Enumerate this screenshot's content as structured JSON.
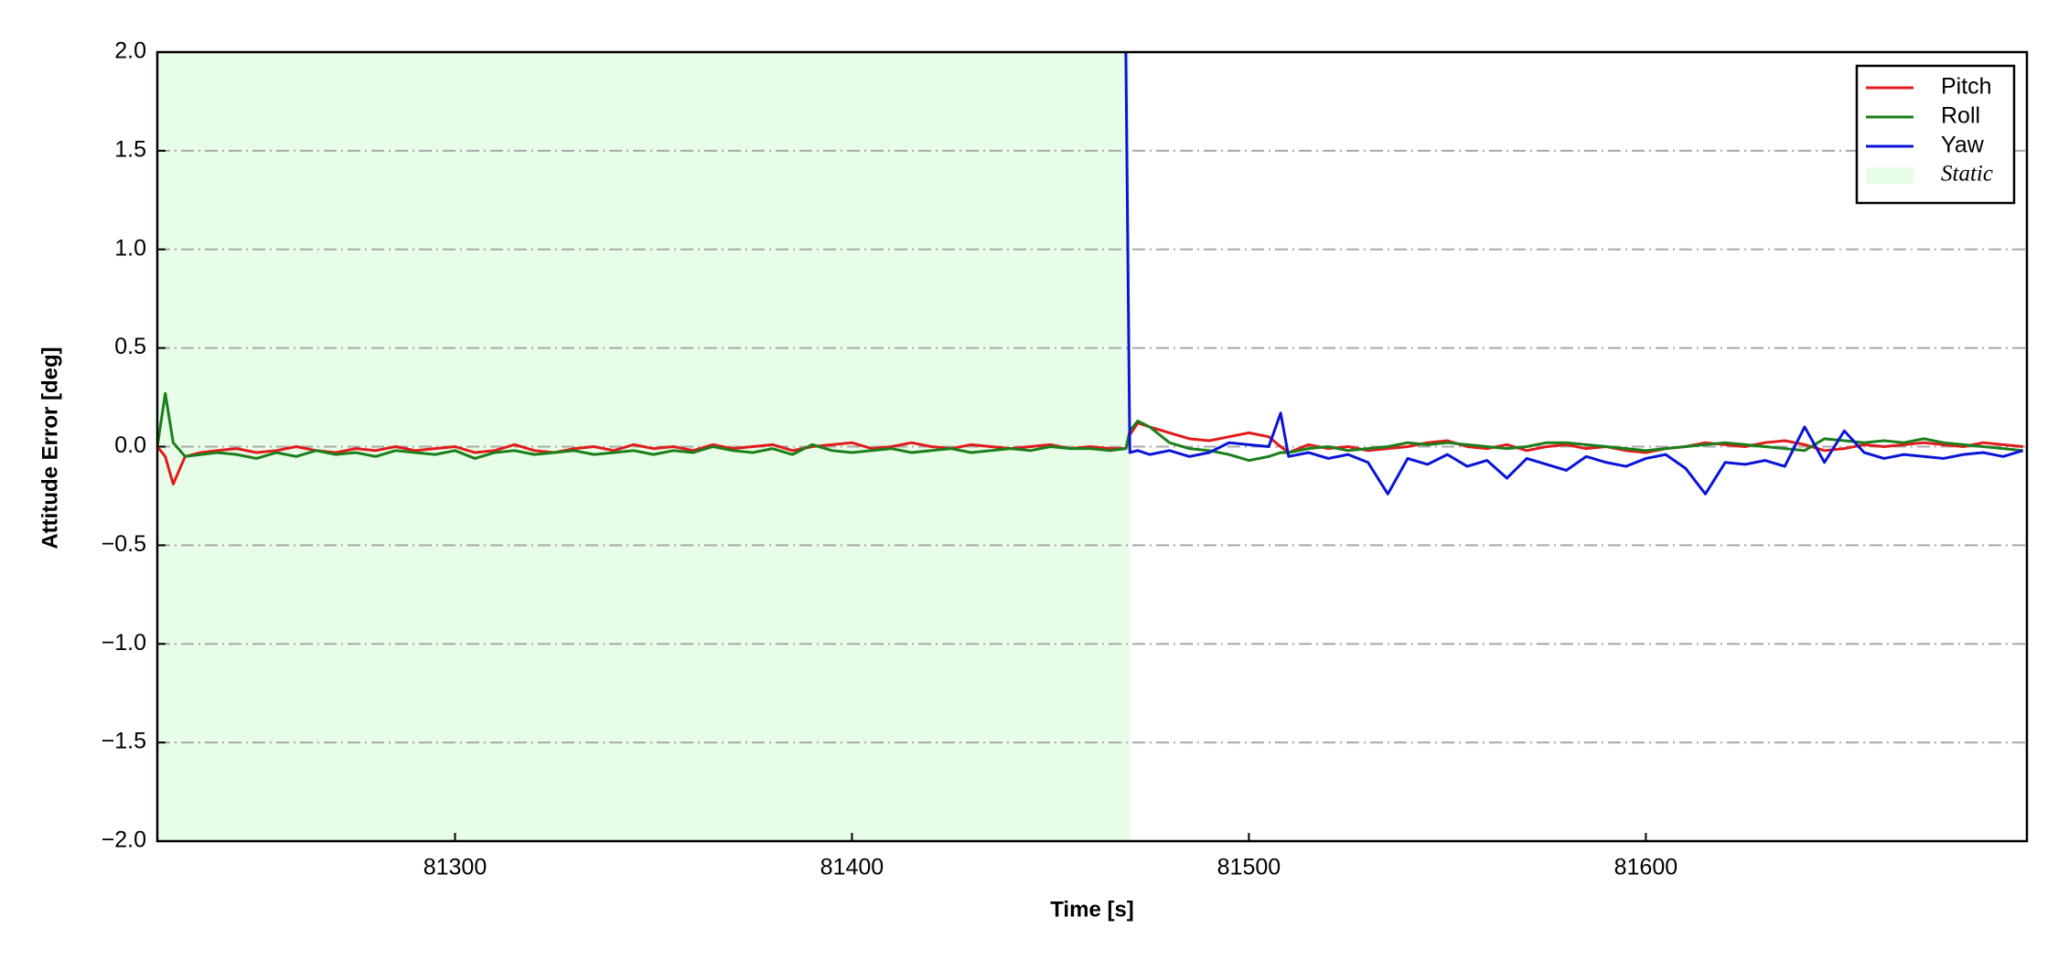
{
  "chart_data": {
    "type": "line",
    "xlabel": "Time [s]",
    "ylabel": "Attitude Error [deg]",
    "xlim": [
      81225,
      81696
    ],
    "ylim": [
      -2.0,
      2.0
    ],
    "xticks": [
      81300,
      81400,
      81500,
      81600
    ],
    "yticks": [
      {
        "value": -2.0,
        "label": "−2.0"
      },
      {
        "value": -1.5,
        "label": "−1.5"
      },
      {
        "value": -1.0,
        "label": "−1.0"
      },
      {
        "value": -0.5,
        "label": "−0.5"
      },
      {
        "value": 0.0,
        "label": "0.0"
      },
      {
        "value": 0.5,
        "label": "0.5"
      },
      {
        "value": 1.0,
        "label": "1.0"
      },
      {
        "value": 1.5,
        "label": "1.5"
      },
      {
        "value": 2.0,
        "label": "2.0"
      }
    ],
    "grid": true,
    "legend": "upper right",
    "shaded": {
      "label": "Static",
      "x0": 81225,
      "x1": 81470,
      "color": "#e8fde8"
    },
    "x": [
      81225,
      81227,
      81229,
      81232,
      81236,
      81240,
      81245,
      81250,
      81255,
      81260,
      81265,
      81270,
      81275,
      81280,
      81285,
      81290,
      81295,
      81300,
      81305,
      81310,
      81315,
      81320,
      81325,
      81330,
      81335,
      81340,
      81345,
      81350,
      81355,
      81360,
      81365,
      81370,
      81375,
      81380,
      81385,
      81390,
      81395,
      81400,
      81405,
      81410,
      81415,
      81420,
      81425,
      81430,
      81435,
      81440,
      81445,
      81450,
      81455,
      81460,
      81465,
      81469,
      81470,
      81472,
      81475,
      81480,
      81485,
      81490,
      81495,
      81500,
      81505,
      81508,
      81510,
      81515,
      81520,
      81525,
      81530,
      81535,
      81540,
      81545,
      81550,
      81555,
      81560,
      81565,
      81570,
      81575,
      81580,
      81585,
      81590,
      81595,
      81600,
      81605,
      81610,
      81615,
      81620,
      81625,
      81630,
      81635,
      81640,
      81645,
      81650,
      81655,
      81660,
      81665,
      81670,
      81675,
      81680,
      81685,
      81690,
      81695
    ],
    "series": [
      {
        "name": "Pitch",
        "color": "#e31a1c",
        "values": [
          0,
          -0.05,
          -0.19,
          -0.05,
          -0.03,
          -0.02,
          -0.01,
          -0.03,
          -0.02,
          0.0,
          -0.02,
          -0.03,
          -0.01,
          -0.02,
          0.0,
          -0.02,
          -0.01,
          0.0,
          -0.03,
          -0.02,
          0.01,
          -0.02,
          -0.03,
          -0.01,
          0.0,
          -0.02,
          0.01,
          -0.01,
          0.0,
          -0.02,
          0.01,
          -0.01,
          0.0,
          0.01,
          -0.02,
          0.0,
          0.01,
          0.02,
          -0.01,
          0.0,
          0.02,
          0.0,
          -0.01,
          0.01,
          0.0,
          -0.01,
          0.0,
          0.01,
          -0.01,
          0.0,
          -0.01,
          -0.01,
          0.06,
          0.12,
          0.1,
          0.07,
          0.04,
          0.03,
          0.05,
          0.07,
          0.05,
          0.0,
          -0.03,
          0.01,
          -0.01,
          0.0,
          -0.02,
          -0.01,
          0.0,
          0.02,
          0.03,
          0.0,
          -0.01,
          0.01,
          -0.02,
          0.0,
          0.01,
          -0.01,
          0.0,
          -0.02,
          -0.03,
          -0.01,
          0.0,
          0.02,
          0.01,
          0.0,
          0.02,
          0.03,
          0.01,
          -0.02,
          -0.01,
          0.01,
          0.0,
          0.01,
          0.02,
          0.01,
          0.0,
          0.02,
          0.01,
          0.0
        ]
      },
      {
        "name": "Roll",
        "color": "#1a7f1a",
        "values": [
          0,
          0.27,
          0.02,
          -0.05,
          -0.04,
          -0.03,
          -0.04,
          -0.06,
          -0.03,
          -0.05,
          -0.02,
          -0.04,
          -0.03,
          -0.05,
          -0.02,
          -0.03,
          -0.04,
          -0.02,
          -0.06,
          -0.03,
          -0.02,
          -0.04,
          -0.03,
          -0.02,
          -0.04,
          -0.03,
          -0.02,
          -0.04,
          -0.02,
          -0.03,
          0.0,
          -0.02,
          -0.03,
          -0.01,
          -0.04,
          0.01,
          -0.02,
          -0.03,
          -0.02,
          -0.01,
          -0.03,
          -0.02,
          -0.01,
          -0.03,
          -0.02,
          -0.01,
          -0.02,
          0.0,
          -0.01,
          -0.01,
          -0.02,
          -0.01,
          0.08,
          0.13,
          0.1,
          0.02,
          -0.01,
          -0.02,
          -0.04,
          -0.07,
          -0.05,
          -0.03,
          -0.03,
          -0.01,
          0.0,
          -0.02,
          -0.01,
          0.0,
          0.02,
          0.01,
          0.02,
          0.01,
          0.0,
          -0.01,
          0.0,
          0.02,
          0.02,
          0.01,
          0.0,
          -0.01,
          -0.02,
          -0.01,
          0.0,
          0.01,
          0.02,
          0.01,
          0.0,
          -0.01,
          -0.02,
          0.04,
          0.03,
          0.02,
          0.03,
          0.02,
          0.04,
          0.02,
          0.01,
          0.0,
          -0.01,
          -0.02
        ]
      },
      {
        "name": "Yaw",
        "color": "#0a14d8",
        "values": [
          null,
          null,
          null,
          null,
          null,
          null,
          null,
          null,
          null,
          null,
          null,
          null,
          null,
          null,
          null,
          null,
          null,
          null,
          null,
          null,
          null,
          null,
          null,
          null,
          null,
          null,
          null,
          null,
          null,
          null,
          null,
          null,
          null,
          null,
          null,
          null,
          null,
          null,
          null,
          null,
          null,
          null,
          null,
          null,
          null,
          null,
          null,
          null,
          null,
          null,
          null,
          2.0,
          -0.03,
          -0.02,
          -0.04,
          -0.02,
          -0.05,
          -0.03,
          0.02,
          0.01,
          0.0,
          0.17,
          -0.05,
          -0.03,
          -0.06,
          -0.04,
          -0.08,
          -0.24,
          -0.06,
          -0.09,
          -0.04,
          -0.1,
          -0.07,
          -0.16,
          -0.06,
          -0.09,
          -0.12,
          -0.05,
          -0.08,
          -0.1,
          -0.06,
          -0.04,
          -0.11,
          -0.24,
          -0.08,
          -0.09,
          -0.07,
          -0.1,
          0.1,
          -0.08,
          0.08,
          -0.03,
          -0.06,
          -0.04,
          -0.05,
          -0.06,
          -0.04,
          -0.03,
          -0.05,
          -0.02
        ]
      }
    ]
  }
}
